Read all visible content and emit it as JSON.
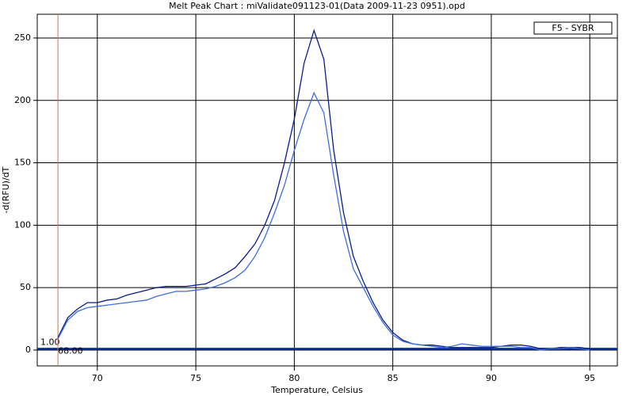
{
  "chart_data": {
    "type": "line",
    "title": "Melt Peak Chart : miValidate091123-01(Data 2009-11-23 0951).opd",
    "x_label": "Temperature, Celsius",
    "y_label": "-d(RFU)/dT",
    "legend_label": "F5 - SYBR",
    "x": [
      68,
      68.5,
      69,
      69.5,
      70,
      70.5,
      71,
      71.5,
      72,
      72.5,
      73,
      73.5,
      74,
      74.5,
      75,
      75.5,
      76,
      76.5,
      77,
      77.5,
      78,
      78.5,
      79,
      79.5,
      80,
      80.5,
      81,
      81.5,
      82,
      82.5,
      83,
      83.5,
      84,
      84.5,
      85,
      85.5,
      86,
      86.5,
      87,
      87.5,
      88,
      88.5,
      89,
      89.5,
      90,
      90.5,
      91,
      91.5,
      92,
      92.5,
      93,
      93.5,
      94,
      94.5,
      95
    ],
    "series": [
      {
        "color": "#0a1c8c",
        "values": [
          10,
          26,
          33,
          38,
          38,
          40,
          41,
          44,
          46,
          48,
          50,
          51,
          51,
          51,
          52,
          53,
          57,
          61,
          66,
          75,
          85,
          100,
          120,
          150,
          185,
          230,
          256,
          233,
          160,
          110,
          75,
          55,
          38,
          24,
          14,
          8,
          5,
          4,
          4,
          3,
          2,
          2,
          2,
          2,
          2,
          3,
          4,
          4,
          3,
          1,
          1,
          2,
          2,
          2,
          1
        ]
      },
      {
        "color": "#3c6ee0",
        "values": [
          9,
          24,
          31,
          34,
          35,
          36,
          37,
          38,
          39,
          40,
          43,
          45,
          47,
          47,
          48,
          49,
          51,
          54,
          58,
          64,
          75,
          90,
          110,
          132,
          160,
          185,
          206,
          190,
          140,
          95,
          65,
          50,
          35,
          22,
          12,
          7,
          5,
          4,
          3,
          2,
          3,
          5,
          4,
          3,
          3,
          3,
          3,
          2,
          2,
          0,
          1,
          1,
          2,
          1,
          0
        ]
      }
    ],
    "xlim": [
      66.95,
      96.4
    ],
    "ylim": [
      -12.7,
      269
    ],
    "xticks": [
      70,
      75,
      80,
      85,
      90,
      95
    ],
    "yticks": [
      0,
      50,
      100,
      150,
      200,
      250
    ],
    "grid": true,
    "threshold": {
      "value": 1,
      "label": "1.00",
      "color": "#1030a0"
    },
    "cursor": {
      "value": 68,
      "label": "68.00",
      "color": "#e07040"
    }
  }
}
